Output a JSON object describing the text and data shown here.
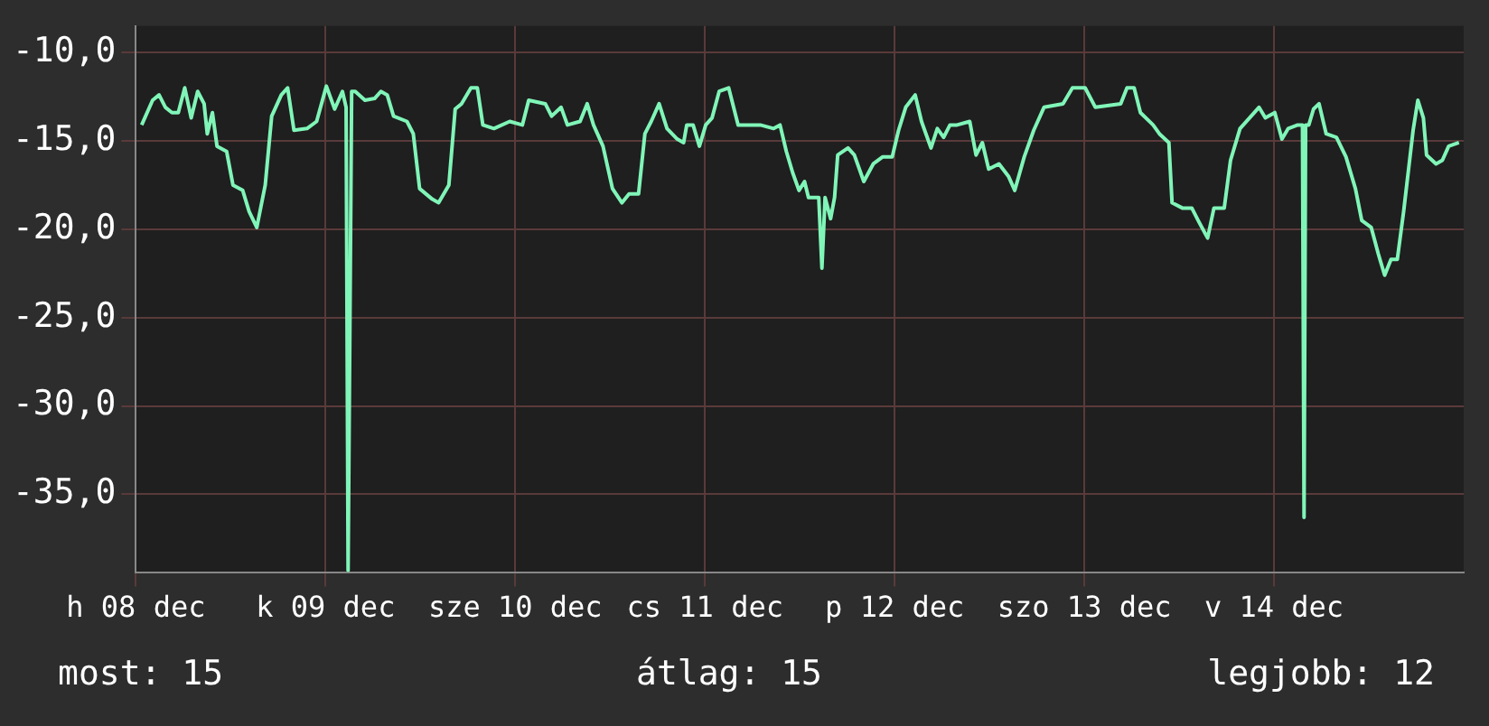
{
  "chart_data": {
    "type": "line",
    "color": "#80f5b8",
    "x": [
      "--12-08T00:44",
      "--12-08T02:07",
      "--12-08T02:56",
      "--12-08T03:44",
      "--12-08T04:34",
      "--12-08T05:22",
      "--12-08T06:11",
      "--12-08T07:00",
      "--12-08T07:49",
      "--12-08T08:38",
      "--12-08T09:02",
      "--12-08T09:41",
      "--12-08T10:16",
      "--12-08T11:29",
      "--12-08T12:17",
      "--12-08T13:31",
      "--12-08T14:20",
      "--12-08T15:18",
      "--12-08T16:22",
      "--12-08T17:11",
      "--12-08T18:24",
      "--12-08T19:12",
      "--12-08T20:00",
      "--12-08T21:39",
      "--12-08T22:52",
      "--12-09T00:06",
      "--12-09T01:09",
      "--12-09T02:08",
      "--12-09T02:36",
      "--12-09T02:51",
      "--12-09T03:18",
      "--12-09T03:45",
      "--12-09T04:59",
      "--12-09T06:12",
      "--12-09T07:00",
      "--12-09T07:48",
      "--12-09T08:36",
      "--12-09T10:18",
      "--12-09T11:06",
      "--12-09T11:54",
      "--12-09T13:30",
      "--12-09T14:18",
      "--12-09T15:36",
      "--12-09T16:24",
      "--12-09T17:12",
      "--12-09T18:24",
      "--12-09T19:12",
      "--12-09T19:54",
      "--12-09T21:18",
      "--12-09T23:18",
      "--12-10T00:54",
      "--12-10T01:42",
      "--12-10T03:48",
      "--12-10T04:36",
      "--12-10T05:48",
      "--12-10T06:36",
      "--12-10T08:12",
      "--12-10T09:06",
      "--12-10T09:54",
      "--12-10T11:06",
      "--12-10T12:18",
      "--12-10T13:30",
      "--12-10T14:24",
      "--12-10T15:36",
      "--12-10T16:24",
      "--12-10T17:12",
      "--12-10T18:12",
      "--12-10T19:12",
      "--12-10T20:30",
      "--12-10T21:18",
      "--12-10T21:42",
      "--12-10T22:30",
      "--12-10T23:18",
      "--12-11T00:06",
      "--12-11T00:54",
      "--12-11T01:48",
      "--12-11T03:00",
      "--12-11T04:12",
      "--12-11T07:00",
      "--12-11T08:42",
      "--12-11T09:30",
      "--12-11T10:18",
      "--12-11T11:06",
      "--12-11T11:54",
      "--12-11T12:36",
      "--12-11T13:06",
      "--12-11T14:24",
      "--12-11T14:48",
      "--12-11T15:12",
      "--12-11T15:54",
      "--12-11T16:24",
      "--12-11T16:48",
      "--12-11T18:06",
      "--12-11T18:54",
      "--12-11T20:06",
      "--12-11T21:18",
      "--12-11T22:30",
      "--12-11T23:42",
      "--12-12T00:30",
      "--12-12T01:24",
      "--12-12T02:36",
      "--12-12T03:24",
      "--12-12T04:36",
      "--12-12T05:24",
      "--12-12T06:12",
      "--12-12T07:00",
      "--12-12T07:54",
      "--12-12T09:30",
      "--12-12T10:18",
      "--12-12T11:06",
      "--12-12T11:54",
      "--12-12T13:12",
      "--12-12T14:24",
      "--12-12T15:12",
      "--12-12T16:24",
      "--12-12T17:36",
      "--12-12T18:54",
      "--12-12T21:18",
      "--12-12T22:30",
      "--12-13T00:06",
      "--12-13T01:24",
      "--12-13T04:36",
      "--12-13T05:24",
      "--12-13T06:18",
      "--12-13T07:06",
      "--12-13T08:42",
      "--12-13T09:30",
      "--12-13T10:42",
      "--12-13T11:06",
      "--12-13T12:24",
      "--12-13T13:36",
      "--12-13T14:24",
      "--12-13T15:36",
      "--12-13T16:24",
      "--12-13T17:42",
      "--12-13T18:30",
      "--12-13T19:42",
      "--12-13T20:54",
      "--12-13T22:06",
      "--12-13T22:54",
      "--12-14T00:06",
      "--12-14T01:00",
      "--12-14T01:48",
      "--12-14T03:00",
      "--12-14T03:36",
      "--12-14T03:48",
      "--12-14T04:00",
      "--12-14T04:24",
      "--12-14T05:00",
      "--12-14T05:42",
      "--12-14T06:36",
      "--12-14T07:54",
      "--12-14T09:06",
      "--12-14T10:18",
      "--12-14T11:06",
      "--12-14T12:18",
      "--12-14T13:12",
      "--12-14T14:00",
      "--12-14T14:48",
      "--12-14T15:36",
      "--12-14T16:24",
      "--12-14T17:36",
      "--12-14T18:12",
      "--12-14T18:54",
      "--12-14T19:18",
      "--12-14T20:30",
      "--12-14T21:18",
      "--12-14T22:06",
      "--12-14T23:24"
    ],
    "values": [
      -14.1,
      -12.7,
      -12.4,
      -13.1,
      -13.4,
      -13.4,
      -12.0,
      -13.7,
      -12.2,
      -12.9,
      -14.6,
      -13.4,
      -15.3,
      -15.6,
      -17.5,
      -17.8,
      -19.0,
      -19.9,
      -17.5,
      -13.6,
      -12.4,
      -12.0,
      -14.4,
      -14.3,
      -13.9,
      -11.9,
      -13.2,
      -12.2,
      -13.1,
      -39.3,
      -12.2,
      -12.2,
      -12.7,
      -12.6,
      -12.2,
      -12.4,
      -13.6,
      -13.9,
      -14.6,
      -17.7,
      -18.3,
      -18.5,
      -17.5,
      -13.2,
      -12.9,
      -12.0,
      -12.0,
      -14.1,
      -14.3,
      -13.9,
      -14.1,
      -12.7,
      -12.9,
      -13.6,
      -13.1,
      -14.1,
      -13.9,
      -12.9,
      -14.1,
      -15.3,
      -17.7,
      -18.5,
      -18.0,
      -18.0,
      -14.6,
      -13.9,
      -12.9,
      -14.3,
      -14.9,
      -15.1,
      -14.1,
      -14.1,
      -15.3,
      -14.1,
      -13.7,
      -12.2,
      -12.0,
      -14.1,
      -14.1,
      -14.3,
      -14.1,
      -15.6,
      -16.8,
      -17.8,
      -17.3,
      -18.2,
      -18.2,
      -22.2,
      -18.2,
      -19.4,
      -18.2,
      -15.8,
      -15.4,
      -15.8,
      -17.3,
      -16.3,
      -15.9,
      -15.9,
      -14.4,
      -13.1,
      -12.4,
      -13.9,
      -15.4,
      -14.3,
      -14.8,
      -14.1,
      -14.1,
      -13.9,
      -15.8,
      -15.1,
      -16.6,
      -16.3,
      -17.0,
      -17.8,
      -15.9,
      -14.4,
      -13.1,
      -12.9,
      -12.0,
      -12.0,
      -13.1,
      -12.9,
      -12.0,
      -12.0,
      -13.4,
      -14.1,
      -14.6,
      -15.1,
      -18.5,
      -18.8,
      -18.8,
      -19.5,
      -20.5,
      -18.8,
      -18.8,
      -16.1,
      -14.3,
      -13.7,
      -13.1,
      -13.7,
      -13.4,
      -14.9,
      -14.3,
      -14.1,
      -14.1,
      -36.3,
      -14.1,
      -14.1,
      -13.2,
      -12.9,
      -14.6,
      -14.8,
      -15.9,
      -17.7,
      -19.5,
      -19.9,
      -21.4,
      -22.6,
      -21.7,
      -21.7,
      -19.0,
      -14.4,
      -12.7,
      -13.7,
      -15.8,
      -16.3,
      -16.1,
      -15.3,
      -15.1
    ],
    "xlim": [
      "--12-08",
      "--12-15"
    ],
    "xticks": [
      {
        "value": "--12-08",
        "label": "h 08 dec"
      },
      {
        "value": "--12-09",
        "label": "k 09 dec"
      },
      {
        "value": "--12-10",
        "label": "sze 10 dec"
      },
      {
        "value": "--12-11",
        "label": "cs 11 dec"
      },
      {
        "value": "--12-12",
        "label": "p 12 dec"
      },
      {
        "value": "--12-13",
        "label": "szo 13 dec"
      },
      {
        "value": "--12-14",
        "label": "v 14 dec"
      }
    ],
    "ylim": [
      -39.4,
      -8.5
    ],
    "yticks": [
      {
        "value": -35,
        "label": "-35,0"
      },
      {
        "value": -30,
        "label": "-30,0"
      },
      {
        "value": -25,
        "label": "-25,0"
      },
      {
        "value": -20,
        "label": "-20,0"
      },
      {
        "value": -15,
        "label": "-15,0"
      },
      {
        "value": -10,
        "label": "-10,0"
      }
    ],
    "grid": true,
    "legend": false,
    "marker": "none",
    "line_style": "solid",
    "annotations": [
      "most: 15",
      "átlag: 15",
      "legjobb: 12"
    ]
  }
}
